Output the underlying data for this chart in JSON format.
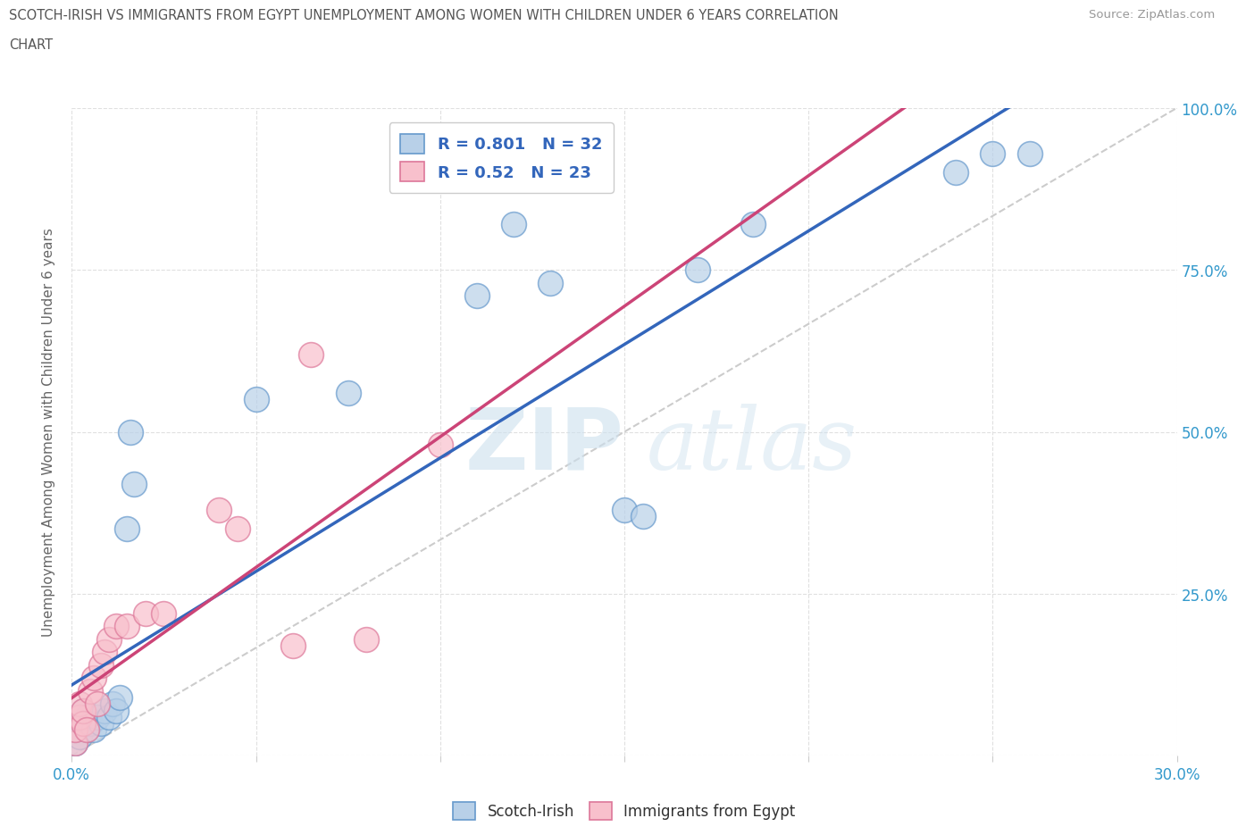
{
  "title_line1": "SCOTCH-IRISH VS IMMIGRANTS FROM EGYPT UNEMPLOYMENT AMONG WOMEN WITH CHILDREN UNDER 6 YEARS CORRELATION",
  "title_line2": "CHART",
  "source_text": "Source: ZipAtlas.com",
  "ylabel": "Unemployment Among Women with Children Under 6 years",
  "xlim": [
    0.0,
    0.3
  ],
  "ylim": [
    0.0,
    1.0
  ],
  "xticks": [
    0.0,
    0.05,
    0.1,
    0.15,
    0.2,
    0.25,
    0.3
  ],
  "yticks": [
    0.0,
    0.25,
    0.5,
    0.75,
    1.0
  ],
  "scotch_irish_x": [
    0.001,
    0.001,
    0.002,
    0.002,
    0.003,
    0.003,
    0.004,
    0.004,
    0.005,
    0.006,
    0.007,
    0.008,
    0.009,
    0.01,
    0.011,
    0.012,
    0.013,
    0.015,
    0.016,
    0.017,
    0.05,
    0.075,
    0.11,
    0.12,
    0.13,
    0.15,
    0.155,
    0.17,
    0.185,
    0.24,
    0.25,
    0.26
  ],
  "scotch_irish_y": [
    0.02,
    0.04,
    0.03,
    0.06,
    0.05,
    0.07,
    0.04,
    0.06,
    0.05,
    0.04,
    0.06,
    0.05,
    0.07,
    0.06,
    0.08,
    0.07,
    0.09,
    0.35,
    0.5,
    0.42,
    0.55,
    0.56,
    0.71,
    0.82,
    0.73,
    0.38,
    0.37,
    0.75,
    0.82,
    0.9,
    0.93,
    0.93
  ],
  "egypt_x": [
    0.001,
    0.001,
    0.002,
    0.002,
    0.003,
    0.003,
    0.004,
    0.005,
    0.006,
    0.007,
    0.008,
    0.009,
    0.01,
    0.012,
    0.015,
    0.02,
    0.025,
    0.04,
    0.045,
    0.06,
    0.065,
    0.08,
    0.1
  ],
  "egypt_y": [
    0.02,
    0.04,
    0.06,
    0.08,
    0.05,
    0.07,
    0.04,
    0.1,
    0.12,
    0.08,
    0.14,
    0.16,
    0.18,
    0.2,
    0.2,
    0.22,
    0.22,
    0.38,
    0.35,
    0.17,
    0.62,
    0.18,
    0.48
  ],
  "scotch_R": 0.801,
  "scotch_N": 32,
  "egypt_R": 0.52,
  "egypt_N": 23,
  "scotch_color": "#b8d0e8",
  "scotch_edge_color": "#6699cc",
  "scotch_line_color": "#3366bb",
  "egypt_color": "#f8c0cc",
  "egypt_edge_color": "#dd7799",
  "egypt_line_color": "#cc4477",
  "ref_line_color": "#cccccc",
  "watermark_color": "#cce0ee",
  "background_color": "#ffffff",
  "legend_text_color": "#3366bb",
  "title_color": "#555555",
  "tick_color": "#3399cc",
  "grid_color": "#e0e0e0"
}
